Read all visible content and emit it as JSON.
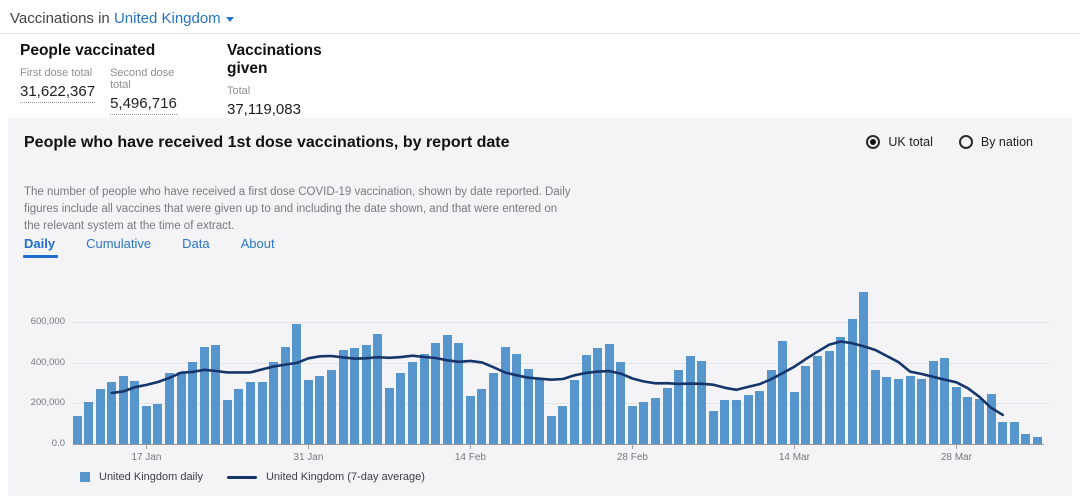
{
  "header": {
    "prefix": "Vaccinations in",
    "location": "United Kingdom"
  },
  "stats": {
    "people_vaccinated": {
      "title": "People vaccinated",
      "items": [
        {
          "label": "First dose total",
          "value": "31,622,367"
        },
        {
          "label": "Second dose total",
          "value": "5,496,716"
        }
      ]
    },
    "vaccinations_given": {
      "title": "Vaccinations given",
      "items": [
        {
          "label": "Total",
          "value": "37,119,083"
        }
      ]
    }
  },
  "panel": {
    "title": "People who have received 1st dose vaccinations, by report date",
    "description": "The number of people who have received a first dose COVID-19 vaccination, shown by date reported. Daily figures include all vaccines that were given up to and including the date shown, and that were entered on the relevant system at the time of extract.",
    "radios": [
      {
        "label": "UK total",
        "selected": true
      },
      {
        "label": "By nation",
        "selected": false
      }
    ],
    "tabs": [
      {
        "label": "Daily",
        "active": true
      },
      {
        "label": "Cumulative",
        "active": false
      },
      {
        "label": "Data",
        "active": false
      },
      {
        "label": "About",
        "active": false
      }
    ]
  },
  "colors": {
    "accent_blue": "#2374c4",
    "bar_blue": "#5795cd",
    "line_navy": "#16366b",
    "panel_bg": "#f4f4f6"
  },
  "chart_data": {
    "type": "bar",
    "title": "People who have received 1st dose vaccinations, by report date",
    "xlabel": "",
    "ylabel": "",
    "x_start_date": "11 Jan",
    "x_end_date": "4 Apr",
    "x_tick_labels": [
      "17 Jan",
      "31 Jan",
      "14 Feb",
      "28 Feb",
      "14 Mar",
      "28 Mar"
    ],
    "x_tick_indices": [
      6,
      20,
      34,
      48,
      62,
      76
    ],
    "y_tick_labels": [
      "0.0",
      "200,000",
      "400,000",
      "600,000"
    ],
    "y_tick_values": [
      0,
      200000,
      400000,
      600000
    ],
    "ylim": [
      0,
      780000
    ],
    "grid": "horizontal",
    "legend_position": "bottom",
    "series": [
      {
        "name": "United Kingdom daily",
        "type": "bar",
        "color": "#5795cd",
        "values": [
          140000,
          205000,
          271000,
          306000,
          334000,
          311000,
          188000,
          198000,
          347000,
          353000,
          403000,
          479000,
          487000,
          215000,
          272000,
          305000,
          305000,
          403000,
          479000,
          589000,
          315000,
          337000,
          366000,
          463000,
          473000,
          489000,
          540000,
          274000,
          347000,
          403000,
          444000,
          495000,
          537000,
          498000,
          237000,
          269000,
          351000,
          475000,
          445000,
          368000,
          318000,
          140000,
          188000,
          315000,
          440000,
          470000,
          494000,
          403000,
          185000,
          205000,
          226000,
          274000,
          366000,
          431000,
          408000,
          161000,
          215000,
          218000,
          242000,
          260000,
          363000,
          509000,
          255000,
          385000,
          431000,
          459000,
          528000,
          613000,
          748000,
          366000,
          328000,
          320000,
          333000,
          318000,
          407000,
          423000,
          281000,
          233000,
          220000,
          244000,
          110000,
          110000,
          49000,
          36000
        ]
      },
      {
        "name": "United Kingdom (7-day average)",
        "type": "line",
        "color": "#16366b",
        "derivation": "centered 7-day mean of the daily series, plotted from index 3 to 80"
      }
    ]
  }
}
